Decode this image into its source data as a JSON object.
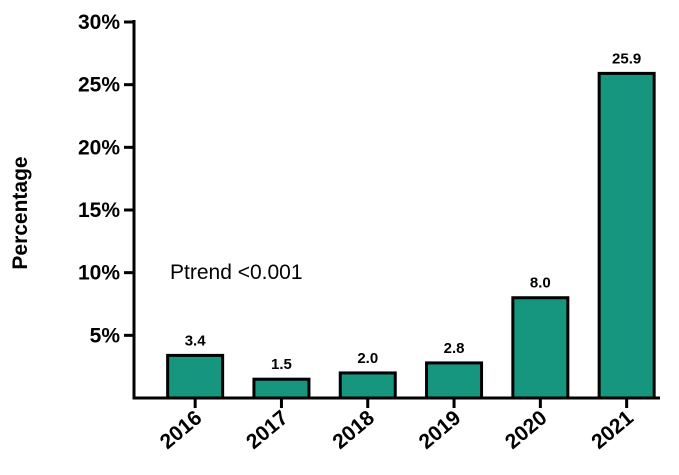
{
  "chart_data": {
    "type": "bar",
    "categories": [
      "2016",
      "2017",
      "2018",
      "2019",
      "2020",
      "2021"
    ],
    "values": [
      3.4,
      1.5,
      2.0,
      2.8,
      8.0,
      25.9
    ],
    "value_labels": [
      "3.4",
      "1.5",
      "2.0",
      "2.8",
      "8.0",
      "25.9"
    ],
    "title": "",
    "xlabel": "",
    "ylabel": "Percentage",
    "ylim": [
      0,
      30
    ],
    "yticks": [
      {
        "value": 5,
        "label": "5%"
      },
      {
        "value": 10,
        "label": "10%"
      },
      {
        "value": 15,
        "label": "15%"
      },
      {
        "value": 20,
        "label": "20%"
      },
      {
        "value": 25,
        "label": "25%"
      },
      {
        "value": 30,
        "label": "30%"
      }
    ],
    "annotation": "Ptrend <0.001",
    "grid": false,
    "legend": "none",
    "bar_color": "#16957f",
    "bar_edge_color": "#000000"
  }
}
